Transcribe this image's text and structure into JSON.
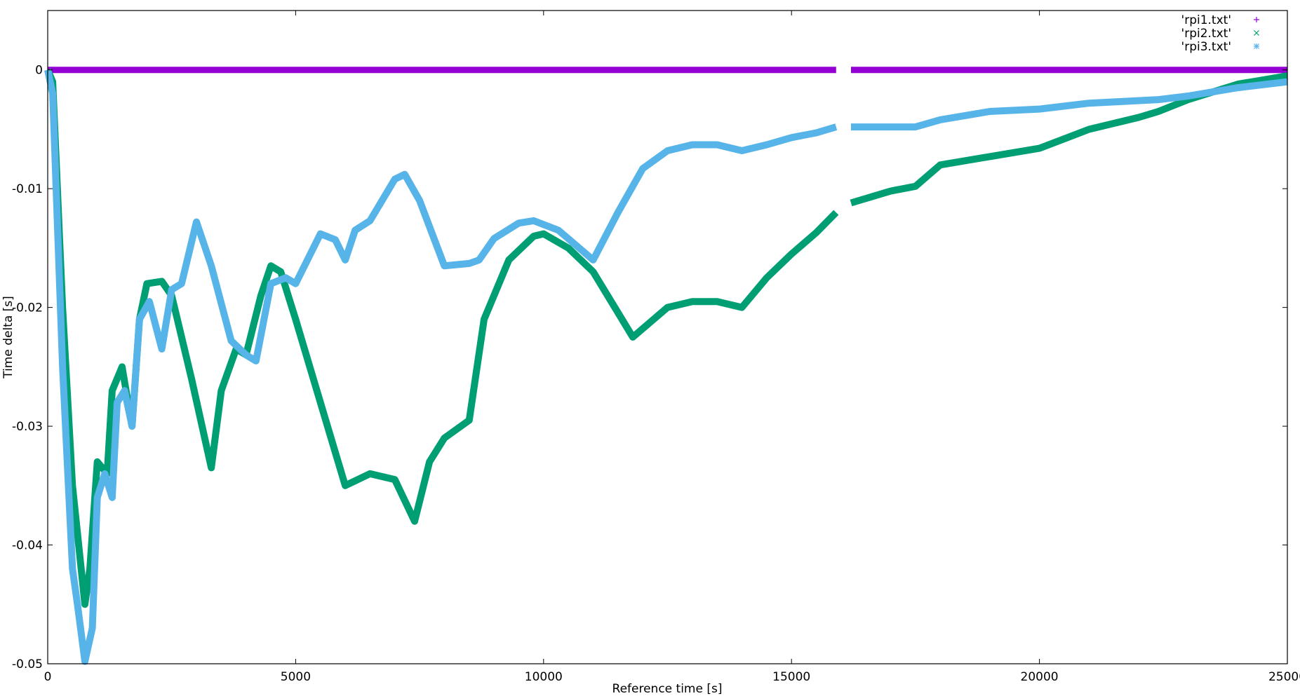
{
  "chart_data": {
    "type": "scatter",
    "title": "",
    "xlabel": "Reference time [s]",
    "ylabel": "Time delta [s]",
    "xlim": [
      0,
      25000
    ],
    "ylim": [
      -0.05,
      0.005
    ],
    "xticks": [
      0,
      5000,
      10000,
      15000,
      20000,
      25000
    ],
    "xtick_labels": [
      "0",
      "5000",
      "10000",
      "15000",
      "20000",
      "25000"
    ],
    "yticks": [
      0,
      -0.01,
      -0.02,
      -0.03,
      -0.04,
      -0.05
    ],
    "ytick_labels": [
      "0",
      "-0.01",
      "-0.02",
      "-0.03",
      "-0.04",
      "-0.05"
    ],
    "grid": false,
    "legend_position": "top-right",
    "series": [
      {
        "name": "'rpi1.txt'",
        "marker": "+",
        "color": "#9400d3",
        "x": [
          0,
          2000,
          4000,
          6000,
          8000,
          10000,
          12000,
          14000,
          15900,
          16200,
          18000,
          20000,
          22000,
          25000
        ],
        "y": [
          0,
          0,
          0,
          0,
          0,
          0,
          0,
          0,
          0,
          0,
          0,
          0,
          0,
          0
        ]
      },
      {
        "name": "'rpi2.txt'",
        "marker": "x",
        "color": "#009e73",
        "x": [
          0,
          100,
          300,
          500,
          750,
          850,
          1000,
          1200,
          1300,
          1500,
          1700,
          1850,
          2000,
          2300,
          2500,
          2900,
          3300,
          3500,
          3800,
          4000,
          4300,
          4500,
          4700,
          5000,
          5500,
          6000,
          6500,
          7000,
          7400,
          7700,
          8000,
          8500,
          8800,
          9300,
          9800,
          10000,
          10500,
          11000,
          11800,
          12500,
          13000,
          13500,
          14000,
          14500,
          15000,
          15500,
          15900,
          16200,
          17000,
          17500,
          18000,
          19000,
          20000,
          21000,
          22000,
          22400,
          23000,
          24000,
          25000
        ],
        "y": [
          0,
          -0.001,
          -0.02,
          -0.035,
          -0.045,
          -0.042,
          -0.033,
          -0.034,
          -0.027,
          -0.025,
          -0.03,
          -0.021,
          -0.018,
          -0.0178,
          -0.019,
          -0.026,
          -0.0335,
          -0.027,
          -0.0235,
          -0.024,
          -0.019,
          -0.0165,
          -0.017,
          -0.021,
          -0.028,
          -0.035,
          -0.034,
          -0.0345,
          -0.038,
          -0.033,
          -0.031,
          -0.0295,
          -0.021,
          -0.016,
          -0.014,
          -0.0138,
          -0.015,
          -0.017,
          -0.0225,
          -0.02,
          -0.0195,
          -0.0195,
          -0.02,
          -0.0175,
          -0.0155,
          -0.0137,
          -0.012,
          -0.0112,
          -0.0102,
          -0.0098,
          -0.008,
          -0.0073,
          -0.0066,
          -0.005,
          -0.004,
          -0.0035,
          -0.0025,
          -0.0012,
          -0.0005
        ]
      },
      {
        "name": "'rpi3.txt'",
        "marker": "*",
        "color": "#56b4e9",
        "x": [
          0,
          100,
          300,
          500,
          600,
          750,
          900,
          1000,
          1150,
          1300,
          1400,
          1550,
          1700,
          1850,
          2050,
          2300,
          2500,
          2700,
          3000,
          3300,
          3700,
          4000,
          4200,
          4500,
          4800,
          5000,
          5500,
          5800,
          6000,
          6200,
          6500,
          7000,
          7200,
          7500,
          8000,
          8500,
          8700,
          9000,
          9500,
          9800,
          10300,
          11000,
          11500,
          12000,
          12500,
          13000,
          13500,
          14000,
          14500,
          15000,
          15500,
          15900,
          16200,
          17000,
          17500,
          18000,
          19000,
          20000,
          21000,
          22400,
          23000,
          24000,
          25000
        ],
        "y": [
          0,
          -0.002,
          -0.025,
          -0.042,
          -0.045,
          -0.0498,
          -0.047,
          -0.036,
          -0.034,
          -0.036,
          -0.028,
          -0.027,
          -0.03,
          -0.021,
          -0.0195,
          -0.0235,
          -0.0185,
          -0.018,
          -0.0128,
          -0.0165,
          -0.0228,
          -0.024,
          -0.0245,
          -0.018,
          -0.0175,
          -0.018,
          -0.0138,
          -0.0143,
          -0.016,
          -0.0135,
          -0.0127,
          -0.0092,
          -0.0088,
          -0.011,
          -0.0165,
          -0.0163,
          -0.016,
          -0.0142,
          -0.0129,
          -0.0127,
          -0.0135,
          -0.016,
          -0.012,
          -0.0083,
          -0.0068,
          -0.0063,
          -0.0063,
          -0.0068,
          -0.0063,
          -0.0057,
          -0.0053,
          -0.0048,
          -0.0048,
          -0.0048,
          -0.0048,
          -0.0042,
          -0.0035,
          -0.0033,
          -0.0028,
          -0.0025,
          -0.0022,
          -0.0015,
          -0.001
        ]
      }
    ]
  }
}
